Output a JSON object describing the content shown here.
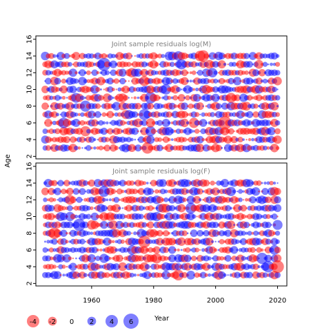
{
  "chart_data": {
    "type": "scatter",
    "encoding": "bubble",
    "ylabel": "Age",
    "xlabel": "Year",
    "x_ticks": [
      "1960",
      "1980",
      "2000",
      "2020"
    ],
    "y_ticks": [
      "2",
      "4",
      "6",
      "8",
      "10",
      "12",
      "14",
      "16"
    ],
    "xlim": [
      1942,
      2023
    ],
    "ylim": [
      1.7,
      16.4
    ],
    "grid": false,
    "legend_position": "bottom-left",
    "legend": {
      "title": "Year",
      "entries": [
        {
          "label": "-4",
          "value": -4
        },
        {
          "label": "-2",
          "value": -2
        },
        {
          "label": "0",
          "value": 0
        },
        {
          "label": "2",
          "value": 2
        },
        {
          "label": "4",
          "value": 4
        },
        {
          "label": "6",
          "value": 6
        }
      ]
    },
    "colors": {
      "positive": "#0000ff",
      "negative": "#ff0000",
      "fill_opacity": 0.5,
      "frame": "#000000",
      "title_text": "#808080"
    },
    "panels": [
      {
        "title": "Joint sample residuals log(M)",
        "x_range": [
          1945,
          2020
        ],
        "ages": [
          3,
          14
        ]
      },
      {
        "title": "Joint sample residuals log(F)",
        "x_range": [
          1945,
          2020
        ],
        "ages": [
          3,
          14
        ]
      }
    ]
  }
}
